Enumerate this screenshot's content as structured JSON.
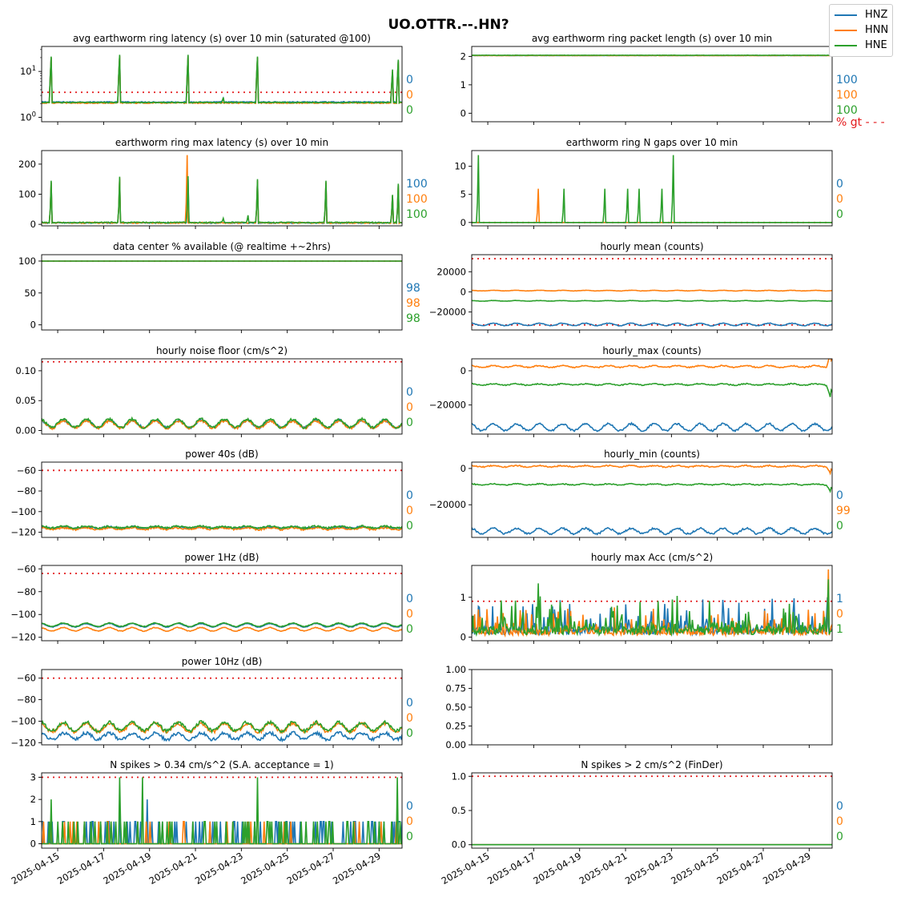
{
  "figure": {
    "title": "UO.OTTR.--.HN?",
    "legend": [
      "HNZ",
      "HNN",
      "HNE"
    ],
    "colors": {
      "HNZ": "#1f77b4",
      "HNN": "#ff7f0e",
      "HNE": "#2ca02c",
      "threshold": "#e31a1c"
    },
    "x_tick_labels": [
      "2025-04-15",
      "2025-04-17",
      "2025-04-19",
      "2025-04-21",
      "2025-04-23",
      "2025-04-25",
      "2025-04-27",
      "2025-04-29"
    ],
    "pct_gt_label": "% gt - - -"
  },
  "chart_data": [
    {
      "id": "p1",
      "type": "line",
      "title": "avg earthworm ring latency (s)   over 10 min (saturated @100)",
      "yscale": "log",
      "ylim": [
        0.8,
        35
      ],
      "yticks": [
        1,
        10
      ],
      "ytick_labels": [
        "10^0",
        "10^1"
      ],
      "threshold": 3.5,
      "pct": [
        "0",
        "0",
        "0"
      ],
      "series": [
        {
          "name": "HNZ",
          "kind": "spikes",
          "base": 2.15,
          "noise": 0.05,
          "spikes": [
            [
              14.7,
              20
            ],
            [
              17.7,
              22
            ],
            [
              20.7,
              22
            ],
            [
              22.2,
              2.6
            ],
            [
              23.7,
              20
            ],
            [
              29.6,
              10
            ],
            [
              29.85,
              17
            ]
          ]
        },
        {
          "name": "HNN",
          "kind": "spikes",
          "base": 2.05,
          "noise": 0.05,
          "spikes": [
            [
              14.7,
              20
            ],
            [
              17.7,
              22
            ],
            [
              20.7,
              22
            ],
            [
              23.7,
              20
            ],
            [
              29.6,
              10
            ],
            [
              29.85,
              17
            ]
          ]
        },
        {
          "name": "HNE",
          "kind": "spikes",
          "base": 2.1,
          "noise": 0.05,
          "spikes": [
            [
              14.7,
              21
            ],
            [
              17.7,
              23
            ],
            [
              20.7,
              23
            ],
            [
              22.2,
              2.7
            ],
            [
              23.7,
              21
            ],
            [
              29.6,
              11
            ],
            [
              29.85,
              18
            ]
          ]
        }
      ]
    },
    {
      "id": "p2",
      "type": "line",
      "title": "avg earthworm ring packet length (s)   over 10 min",
      "ylim": [
        -0.3,
        2.35
      ],
      "yticks": [
        0,
        1,
        2
      ],
      "threshold": null,
      "pct": [
        "100",
        "100",
        "100"
      ],
      "show_pct_gt": true,
      "series": [
        {
          "name": "HNZ",
          "kind": "flat",
          "base": 2.03,
          "noise": 0.005
        },
        {
          "name": "HNN",
          "kind": "flat",
          "base": 2.03,
          "noise": 0.005
        },
        {
          "name": "HNE",
          "kind": "flat",
          "base": 2.04,
          "noise": 0.005
        }
      ]
    },
    {
      "id": "p3",
      "type": "line",
      "title": "earthworm ring max latency (s)   over 10 min",
      "ylim": [
        -5,
        245
      ],
      "yticks": [
        0,
        100,
        200
      ],
      "threshold": null,
      "pct": [
        "100",
        "100",
        "100"
      ],
      "series": [
        {
          "name": "HNZ",
          "kind": "spikes",
          "base": 5,
          "noise": 2,
          "spikes": [
            [
              14.7,
              140
            ],
            [
              17.7,
              150
            ],
            [
              20.7,
              150
            ],
            [
              23.7,
              145
            ],
            [
              26.7,
              140
            ],
            [
              29.6,
              95
            ],
            [
              29.85,
              130
            ]
          ]
        },
        {
          "name": "HNN",
          "kind": "spikes",
          "base": 5,
          "noise": 2,
          "spikes": [
            [
              14.7,
              140
            ],
            [
              17.7,
              155
            ],
            [
              20.65,
              230
            ],
            [
              23.7,
              145
            ],
            [
              26.7,
              140
            ],
            [
              29.6,
              95
            ],
            [
              29.85,
              130
            ]
          ]
        },
        {
          "name": "HNE",
          "kind": "spikes",
          "base": 6,
          "noise": 2,
          "spikes": [
            [
              14.7,
              145
            ],
            [
              17.7,
              158
            ],
            [
              20.7,
              160
            ],
            [
              22.2,
              20
            ],
            [
              23.3,
              30
            ],
            [
              23.7,
              150
            ],
            [
              26.7,
              145
            ],
            [
              29.6,
              98
            ],
            [
              29.85,
              135
            ]
          ]
        }
      ]
    },
    {
      "id": "p4",
      "type": "line",
      "title": "earthworm ring N gaps   over 10 min",
      "ylim": [
        -0.6,
        12.8
      ],
      "yticks": [
        0,
        5,
        10
      ],
      "threshold": 0,
      "pct": [
        "0",
        "0",
        "0"
      ],
      "series": [
        {
          "name": "HNZ",
          "kind": "spikes",
          "base": 0,
          "noise": 0,
          "spikes": []
        },
        {
          "name": "HNN",
          "kind": "spikes",
          "base": 0,
          "noise": 0,
          "spikes": [
            [
              17.2,
              6
            ]
          ]
        },
        {
          "name": "HNE",
          "kind": "spikes",
          "base": 0,
          "noise": 0,
          "spikes": [
            [
              14.6,
              12
            ],
            [
              18.3,
              6
            ],
            [
              20.1,
              6
            ],
            [
              21.1,
              6
            ],
            [
              21.6,
              6
            ],
            [
              22.6,
              6
            ],
            [
              23.1,
              12
            ]
          ]
        }
      ]
    },
    {
      "id": "p5",
      "type": "line",
      "title": "data center % available (@ realtime +~2hrs)",
      "ylim": [
        -8,
        110
      ],
      "yticks": [
        0,
        50,
        100
      ],
      "threshold": 100,
      "pct": [
        "98",
        "98",
        "98"
      ],
      "series": [
        {
          "name": "HNZ",
          "kind": "flat",
          "base": 100,
          "noise": 0
        },
        {
          "name": "HNN",
          "kind": "flat",
          "base": 100,
          "noise": 0
        },
        {
          "name": "HNE",
          "kind": "flat",
          "base": 100,
          "noise": 0
        }
      ]
    },
    {
      "id": "p6",
      "type": "line",
      "title": "hourly mean (counts)",
      "ylim": [
        -38000,
        37000
      ],
      "yticks": [
        -20000,
        0,
        20000
      ],
      "threshold": 33000,
      "threshold2": -33000,
      "pct": [],
      "series": [
        {
          "name": "HNZ",
          "kind": "wave",
          "base": -32500,
          "amp": 1200,
          "noise": 300
        },
        {
          "name": "HNN",
          "kind": "wave",
          "base": 1200,
          "amp": 300,
          "noise": 150
        },
        {
          "name": "HNE",
          "kind": "wave",
          "base": -9000,
          "amp": 300,
          "noise": 150
        }
      ]
    },
    {
      "id": "p7",
      "type": "line",
      "title": "hourly noise floor (cm/s^2)",
      "ylim": [
        -0.006,
        0.12
      ],
      "yticks": [
        0.0,
        0.05,
        0.1
      ],
      "ytick_labels": [
        "0.00",
        "0.05",
        "0.10"
      ],
      "threshold": 0.115,
      "pct": [
        "0",
        "0",
        "0"
      ],
      "series": [
        {
          "name": "HNZ",
          "kind": "wave",
          "base": 0.011,
          "amp": 0.006,
          "noise": 0.002
        },
        {
          "name": "HNN",
          "kind": "wave",
          "base": 0.01,
          "amp": 0.006,
          "noise": 0.002
        },
        {
          "name": "HNE",
          "kind": "wave",
          "base": 0.012,
          "amp": 0.007,
          "noise": 0.002
        }
      ]
    },
    {
      "id": "p8",
      "type": "line",
      "title": "hourly_max (counts)",
      "ylim": [
        -37000,
        7000
      ],
      "yticks": [
        -20000,
        0
      ],
      "threshold": null,
      "pct": [],
      "series": [
        {
          "name": "HNZ",
          "kind": "wave",
          "base": -33000,
          "amp": 2000,
          "noise": 500
        },
        {
          "name": "HNN",
          "kind": "wave",
          "base": 2500,
          "amp": 500,
          "noise": 300,
          "end_jump": 5500
        },
        {
          "name": "HNE",
          "kind": "wave",
          "base": -8000,
          "amp": 400,
          "noise": 300,
          "end_jump": -5000
        }
      ]
    },
    {
      "id": "p9",
      "type": "line",
      "title": "power 40s (dB)",
      "ylim": [
        -125,
        -52
      ],
      "yticks": [
        -120,
        -100,
        -80,
        -60
      ],
      "threshold": -60,
      "pct": [
        "0",
        "0",
        "0"
      ],
      "series": [
        {
          "name": "HNZ",
          "kind": "wave",
          "base": -115.5,
          "amp": 0.8,
          "noise": 0.8
        },
        {
          "name": "HNN",
          "kind": "wave",
          "base": -116.5,
          "amp": 0.8,
          "noise": 0.9
        },
        {
          "name": "HNE",
          "kind": "wave",
          "base": -115,
          "amp": 0.8,
          "noise": 0.9
        }
      ]
    },
    {
      "id": "p10",
      "type": "line",
      "title": "hourly_min (counts)",
      "ylim": [
        -38000,
        3500
      ],
      "yticks": [
        -20000,
        0
      ],
      "threshold": null,
      "pct": [
        "0",
        "99",
        "0"
      ],
      "series": [
        {
          "name": "HNZ",
          "kind": "wave",
          "base": -34500,
          "amp": 1500,
          "noise": 500
        },
        {
          "name": "HNN",
          "kind": "wave",
          "base": 1200,
          "amp": 400,
          "noise": 300,
          "end_jump": -2500
        },
        {
          "name": "HNE",
          "kind": "wave",
          "base": -8800,
          "amp": 300,
          "noise": 250,
          "end_jump": -2500
        }
      ]
    },
    {
      "id": "p11",
      "type": "line",
      "title": "power 1Hz (dB)",
      "ylim": [
        -123,
        -57
      ],
      "yticks": [
        -120,
        -100,
        -80,
        -60
      ],
      "threshold": -64,
      "pct": [
        "0",
        "0",
        "0"
      ],
      "series": [
        {
          "name": "HNZ",
          "kind": "wave",
          "base": -109.5,
          "amp": 1.5,
          "noise": 0.3
        },
        {
          "name": "HNN",
          "kind": "wave",
          "base": -113,
          "amp": 1.5,
          "noise": 0.3
        },
        {
          "name": "HNE",
          "kind": "wave",
          "base": -109,
          "amp": 1.5,
          "noise": 0.3
        }
      ]
    },
    {
      "id": "p12",
      "type": "line",
      "title": "hourly max Acc (cm/s^2)",
      "ylim": [
        -0.09,
        1.8
      ],
      "yticks": [
        0,
        1
      ],
      "threshold": 0.9,
      "pct": [
        "1",
        "0",
        "1"
      ],
      "series": [
        {
          "name": "HNZ",
          "kind": "noisy",
          "base": 0.2,
          "noise": 0.5,
          "spikes": [
            [
              14.65,
              0.75
            ],
            [
              29.8,
              1.0
            ]
          ]
        },
        {
          "name": "HNN",
          "kind": "noisy",
          "base": 0.15,
          "noise": 0.4,
          "spikes": [
            [
              29.85,
              1.7
            ]
          ]
        },
        {
          "name": "HNE",
          "kind": "noisy",
          "base": 0.2,
          "noise": 0.5,
          "spikes": [
            [
              17.2,
              1.35
            ],
            [
              29.85,
              1.45
            ]
          ]
        }
      ]
    },
    {
      "id": "p13",
      "type": "line",
      "title": "power 10Hz (dB)",
      "ylim": [
        -122,
        -52
      ],
      "yticks": [
        -120,
        -100,
        -80,
        -60
      ],
      "threshold": -60,
      "pct": [
        "0",
        "0",
        "0"
      ],
      "series": [
        {
          "name": "HNZ",
          "kind": "wave",
          "base": -114,
          "amp": 3,
          "noise": 1.5
        },
        {
          "name": "HNN",
          "kind": "wave",
          "base": -106,
          "amp": 4,
          "noise": 1.5
        },
        {
          "name": "HNE",
          "kind": "wave",
          "base": -105,
          "amp": 4,
          "noise": 1.5
        }
      ]
    },
    {
      "id": "p14",
      "type": "empty",
      "title": "",
      "ylim": [
        0,
        1
      ],
      "yticks": [
        0,
        0.25,
        0.5,
        0.75,
        1.0
      ],
      "ytick_labels": [
        "0.00",
        "0.25",
        "0.50",
        "0.75",
        "1.00"
      ],
      "threshold": null,
      "pct": [],
      "series": []
    },
    {
      "id": "p15",
      "type": "line",
      "title": "N spikes > 0.34 cm/s^2 (S.A. acceptance = 1)",
      "ylim": [
        -0.2,
        3.2
      ],
      "yticks": [
        0,
        1,
        2,
        3
      ],
      "threshold": 3,
      "pct": [
        "0",
        "0",
        "0"
      ],
      "series": [
        {
          "name": "HNZ",
          "kind": "counts",
          "density": 0.22,
          "seed": 11,
          "spikes": [
            [
              17.7,
              2
            ],
            [
              18.9,
              2
            ]
          ]
        },
        {
          "name": "HNN",
          "kind": "counts",
          "density": 0.1,
          "seed": 23,
          "spikes": []
        },
        {
          "name": "HNE",
          "kind": "counts",
          "density": 0.15,
          "seed": 37,
          "spikes": [
            [
              14.7,
              2
            ],
            [
              17.7,
              3
            ],
            [
              18.7,
              3
            ],
            [
              23.7,
              3
            ],
            [
              29.8,
              3
            ]
          ]
        }
      ]
    },
    {
      "id": "p16",
      "type": "line",
      "title": "N spikes > 2 cm/s^2 (FinDer)",
      "ylim": [
        -0.05,
        1.05
      ],
      "yticks": [
        0,
        0.5,
        1
      ],
      "ytick_labels": [
        "0.0",
        "0.5",
        "1.0"
      ],
      "threshold": 1,
      "pct": [
        "0",
        "0",
        "0"
      ],
      "series": [
        {
          "name": "HNZ",
          "kind": "flat",
          "base": 0,
          "noise": 0
        },
        {
          "name": "HNN",
          "kind": "flat",
          "base": 0,
          "noise": 0
        },
        {
          "name": "HNE",
          "kind": "flat",
          "base": 0,
          "noise": 0
        }
      ]
    }
  ]
}
